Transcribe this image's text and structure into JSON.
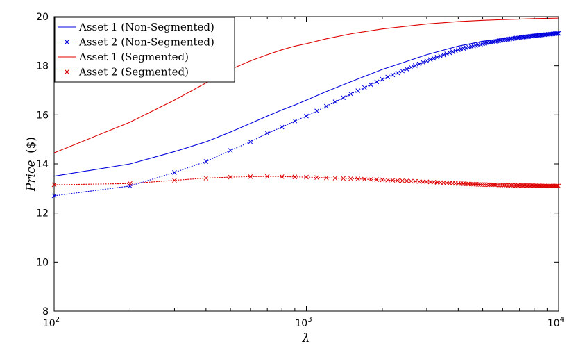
{
  "chart_data": {
    "type": "line",
    "xscale": "log",
    "xlim": [
      100,
      10000
    ],
    "ylim": [
      8,
      20
    ],
    "xlabel": "λ",
    "ylabel_main": "Price",
    "ylabel_unit": "($)",
    "grid": false,
    "legend_position": "top-left",
    "xticks": [
      {
        "base": "10",
        "exp": "2",
        "value": 100
      },
      {
        "base": "10",
        "exp": "3",
        "value": 1000
      },
      {
        "base": "10",
        "exp": "4",
        "value": 10000
      }
    ],
    "yticks": [
      8,
      10,
      12,
      14,
      16,
      18,
      20
    ],
    "x": [
      100,
      200,
      300,
      400,
      500,
      600,
      700,
      800,
      900,
      1000,
      1200,
      1500,
      2000,
      3000,
      4000,
      5000,
      6000,
      7000,
      8000,
      9000,
      10000
    ],
    "series": [
      {
        "name": "Asset 1 (Non-Segmented)",
        "color": "#0000dd",
        "marker": "none",
        "style": "solid",
        "values": [
          13.5,
          14.0,
          14.5,
          14.9,
          15.3,
          15.65,
          15.95,
          16.2,
          16.4,
          16.6,
          16.95,
          17.35,
          17.85,
          18.45,
          18.8,
          19.0,
          19.1,
          19.2,
          19.28,
          19.33,
          19.38
        ]
      },
      {
        "name": "Asset 2 (Non-Segmented)",
        "color": "#0000dd",
        "marker": "x",
        "style": "dotted",
        "values": [
          12.7,
          13.1,
          13.65,
          14.1,
          14.55,
          14.9,
          15.25,
          15.5,
          15.75,
          15.95,
          16.35,
          16.85,
          17.45,
          18.2,
          18.65,
          18.9,
          19.05,
          19.15,
          19.22,
          19.28,
          19.32
        ]
      },
      {
        "name": "Asset 1 (Segmented)",
        "color": "#dd0000",
        "marker": "none",
        "style": "solid",
        "values": [
          14.45,
          15.7,
          16.6,
          17.3,
          17.85,
          18.2,
          18.45,
          18.65,
          18.8,
          18.9,
          19.1,
          19.3,
          19.5,
          19.7,
          19.8,
          19.85,
          19.88,
          19.9,
          19.92,
          19.93,
          19.94
        ]
      },
      {
        "name": "Asset 2 (Segmented)",
        "color": "#dd0000",
        "marker": "x",
        "style": "dotted",
        "values": [
          13.15,
          13.2,
          13.33,
          13.42,
          13.46,
          13.48,
          13.49,
          13.48,
          13.47,
          13.46,
          13.43,
          13.4,
          13.35,
          13.27,
          13.2,
          13.16,
          13.14,
          13.12,
          13.11,
          13.1,
          13.1
        ]
      }
    ]
  }
}
